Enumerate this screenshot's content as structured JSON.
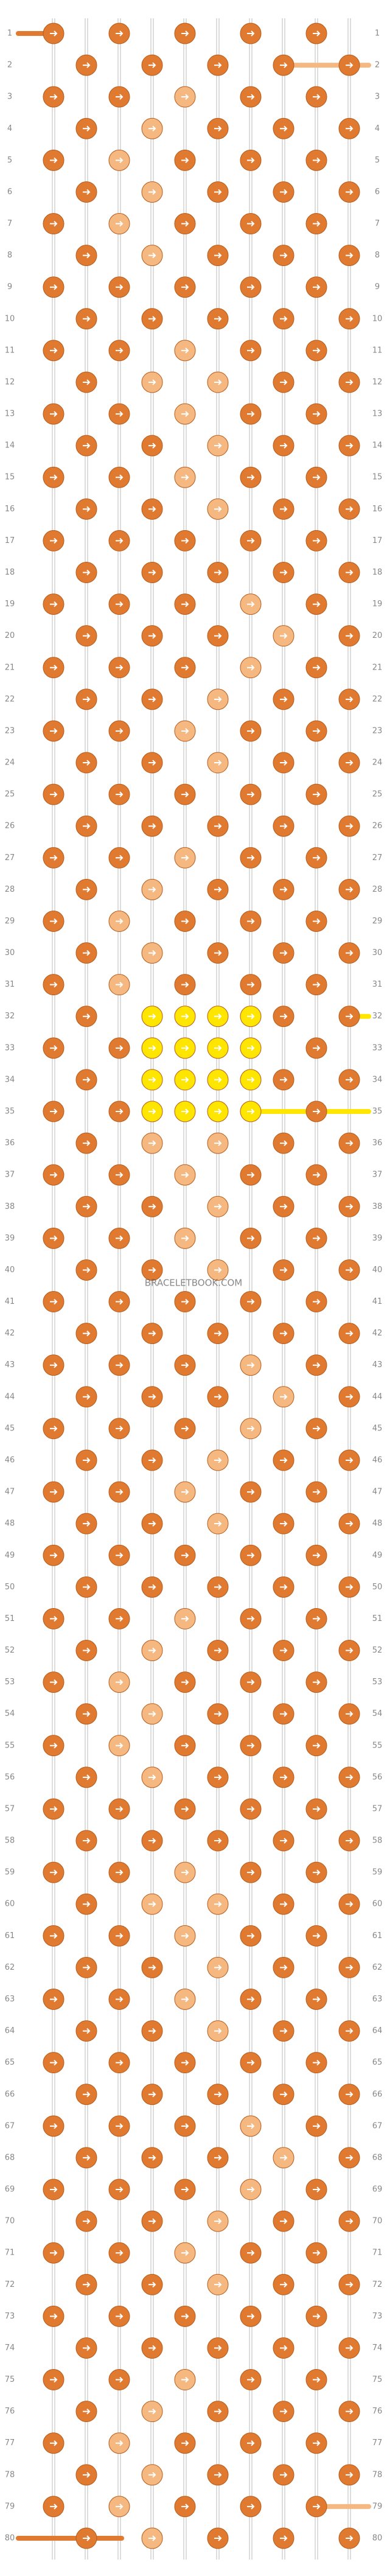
{
  "row_numbers": [
    1,
    2,
    3,
    4,
    5,
    6,
    7,
    8,
    9,
    10,
    11,
    12,
    13,
    14,
    15,
    16,
    17,
    18,
    19,
    20,
    21,
    22,
    23,
    24,
    25,
    26,
    27,
    28,
    29,
    30,
    31,
    32,
    33,
    34,
    35,
    36,
    37,
    38,
    39,
    40,
    41,
    42,
    43,
    44,
    45,
    46,
    47,
    48,
    49,
    50,
    51,
    52,
    53,
    54,
    55,
    56,
    57,
    58,
    59,
    60,
    61,
    62,
    63,
    64,
    65,
    66,
    67,
    68,
    69,
    70,
    71,
    72,
    73,
    74,
    75,
    76,
    77,
    78,
    79,
    80
  ],
  "watermark": "BRACELETBOOK.COM"
}
